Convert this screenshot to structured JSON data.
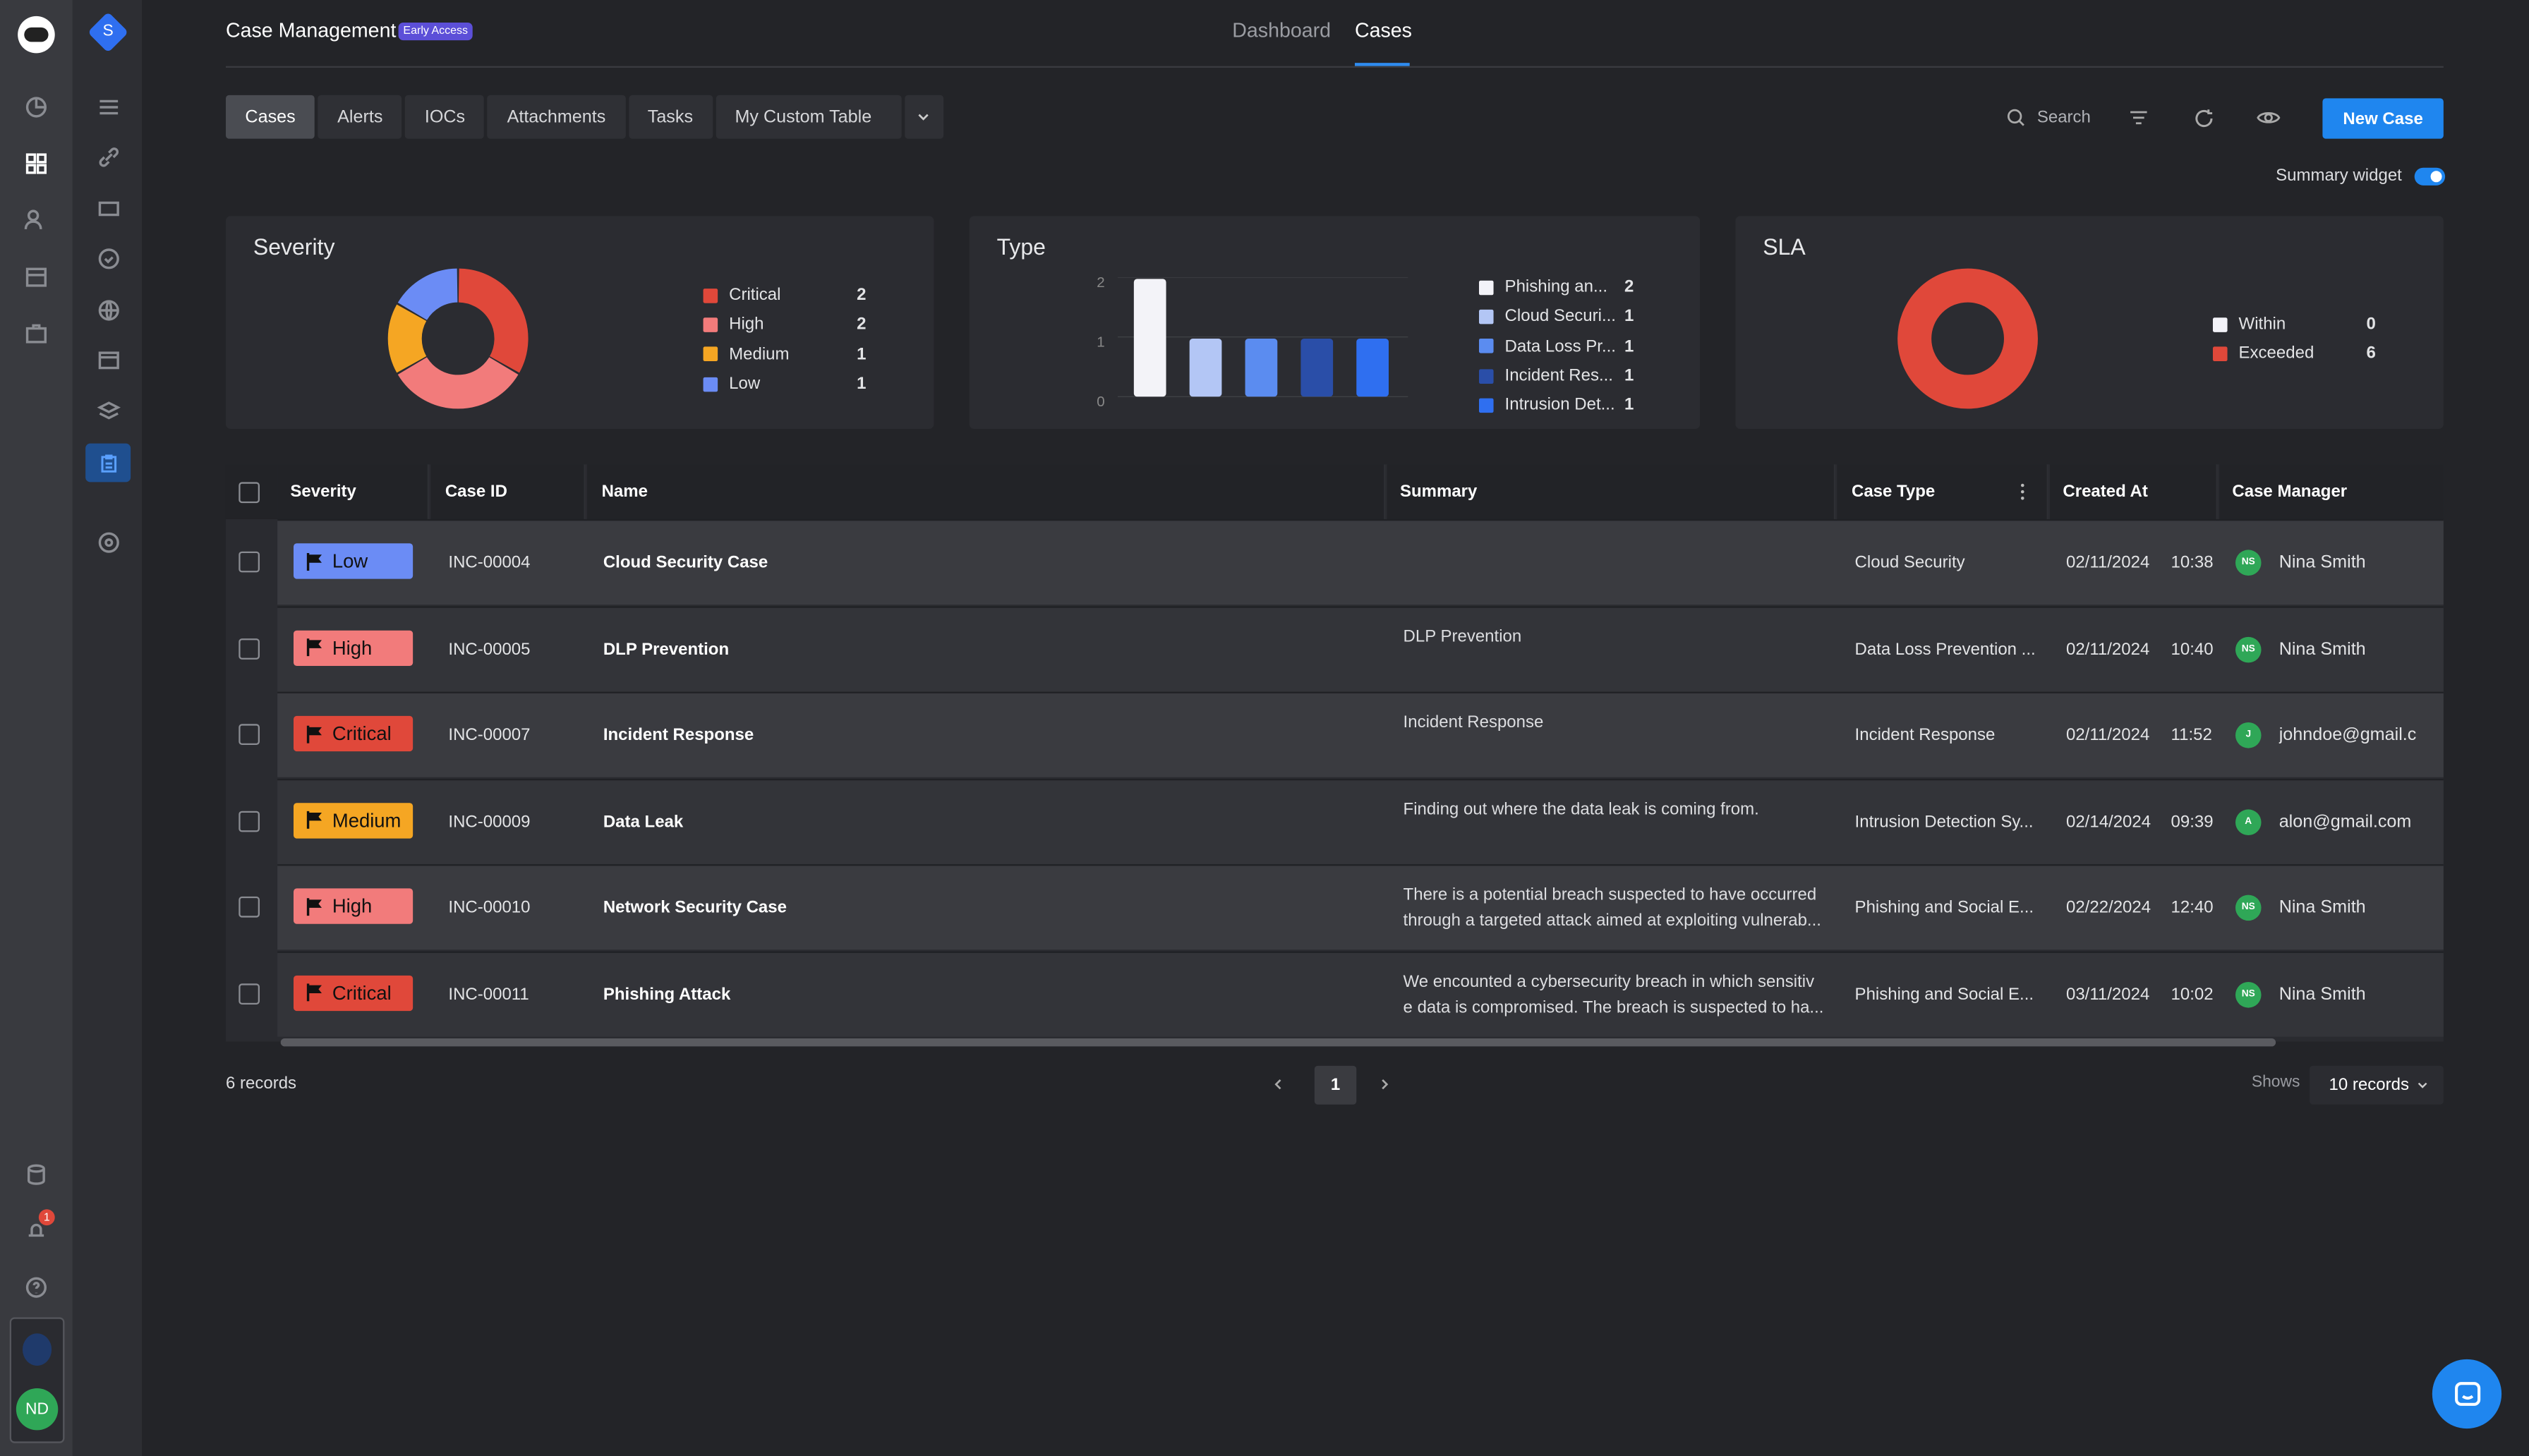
{
  "header": {
    "title": "Case Management",
    "early_badge": "Early Access",
    "tabs": [
      "Dashboard",
      "Cases"
    ],
    "active_tab": "Cases"
  },
  "rail": {
    "workspace_letter": "S",
    "notification_count": "1",
    "user_initials": "ND"
  },
  "table_tabs": [
    "Cases",
    "Alerts",
    "IOCs",
    "Attachments",
    "Tasks",
    "My Custom Table"
  ],
  "toolbar": {
    "search_label": "Search",
    "new_case_label": "New Case",
    "summary_widget_label": "Summary widget"
  },
  "widgets": {
    "severity": {
      "title": "Severity",
      "legend": [
        {
          "label": "Critical",
          "value": "2",
          "color": "#e0483a"
        },
        {
          "label": "High",
          "value": "2",
          "color": "#f27b7b"
        },
        {
          "label": "Medium",
          "value": "1",
          "color": "#f5a623"
        },
        {
          "label": "Low",
          "value": "1",
          "color": "#6b8cf5"
        }
      ]
    },
    "type": {
      "title": "Type",
      "legend": [
        {
          "label": "Phishing an...",
          "value": "2",
          "color": "#f3f3f8"
        },
        {
          "label": "Cloud Securi...",
          "value": "1",
          "color": "#b3c6f5"
        },
        {
          "label": "Data Loss Pr...",
          "value": "1",
          "color": "#5b8cf0"
        },
        {
          "label": "Incident Res...",
          "value": "1",
          "color": "#2a4ea8"
        },
        {
          "label": "Intrusion Det...",
          "value": "1",
          "color": "#2f6ff0"
        }
      ],
      "y_ticks": [
        "2",
        "1",
        "0"
      ]
    },
    "sla": {
      "title": "SLA",
      "legend": [
        {
          "label": "Within",
          "value": "0",
          "color": "#f3f3f8"
        },
        {
          "label": "Exceeded",
          "value": "6",
          "color": "#e0483a"
        }
      ]
    }
  },
  "chart_data": [
    {
      "type": "pie",
      "title": "Severity",
      "categories": [
        "Critical",
        "High",
        "Medium",
        "Low"
      ],
      "values": [
        2,
        2,
        1,
        1
      ]
    },
    {
      "type": "bar",
      "title": "Type",
      "categories": [
        "Phishing an...",
        "Cloud Securi...",
        "Data Loss Pr...",
        "Incident Res...",
        "Intrusion Det..."
      ],
      "values": [
        2,
        1,
        1,
        1,
        1
      ],
      "ylim": [
        0,
        2
      ]
    },
    {
      "type": "pie",
      "title": "SLA",
      "categories": [
        "Within",
        "Exceeded"
      ],
      "values": [
        0,
        6
      ]
    }
  ],
  "table": {
    "columns": [
      "Severity",
      "Case ID",
      "Name",
      "Summary",
      "Case Type",
      "Created At",
      "Case Manager"
    ],
    "rows": [
      {
        "severity": "Low",
        "sev_color": "#6b8cf5",
        "id": "INC-00004",
        "name": "Cloud Security Case",
        "summary": "",
        "type": "Cloud Security",
        "date": "02/11/2024",
        "time": "10:38",
        "avatar": "NS",
        "manager": "Nina Smith"
      },
      {
        "severity": "High",
        "sev_color": "#f27b7b",
        "id": "INC-00005",
        "name": "DLP Prevention",
        "summary": "DLP Prevention",
        "type": "Data Loss Prevention ...",
        "date": "02/11/2024",
        "time": "10:40",
        "avatar": "NS",
        "manager": "Nina Smith"
      },
      {
        "severity": "Critical",
        "sev_color": "#e0483a",
        "id": "INC-00007",
        "name": "Incident Response",
        "summary": "Incident Response",
        "type": "Incident Response",
        "date": "02/11/2024",
        "time": "11:52",
        "avatar": "J",
        "manager": "johndoe@gmail.c"
      },
      {
        "severity": "Medium",
        "sev_color": "#f5a623",
        "id": "INC-00009",
        "name": "Data Leak",
        "summary": "Finding out where the data leak is coming from.",
        "type": "Intrusion Detection Sy...",
        "date": "02/14/2024",
        "time": "09:39",
        "avatar": "A",
        "manager": "alon@gmail.com"
      },
      {
        "severity": "High",
        "sev_color": "#f27b7b",
        "id": "INC-00010",
        "name": "Network Security Case",
        "summary": "There is a potential breach suspected to have occurred through a targeted attack aimed at exploiting vulnerab...",
        "type": "Phishing and Social E...",
        "date": "02/22/2024",
        "time": "12:40",
        "avatar": "NS",
        "manager": "Nina Smith"
      },
      {
        "severity": "Critical",
        "sev_color": "#e0483a",
        "id": "INC-00011",
        "name": "Phishing Attack",
        "summary": "We encounted a cybersecurity breach in which sensitiv e data is compromised. The breach is suspected to ha...",
        "type": "Phishing and Social E...",
        "date": "03/11/2024",
        "time": "10:02",
        "avatar": "NS",
        "manager": "Nina Smith"
      }
    ]
  },
  "footer": {
    "records": "6 records",
    "page": "1",
    "shows_label": "Shows",
    "page_size": "10 records"
  }
}
